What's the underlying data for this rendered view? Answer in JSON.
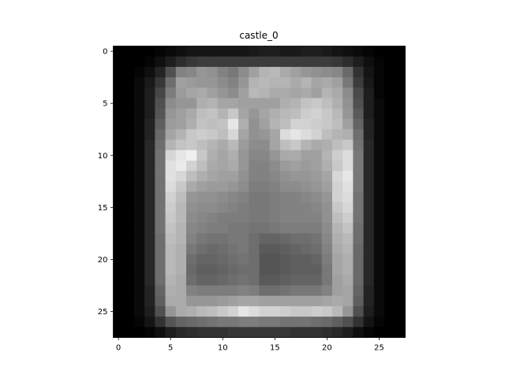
{
  "chart_data": {
    "type": "heatmap",
    "title": "castle_0",
    "xlabel": "",
    "ylabel": "",
    "colormap": "gray",
    "rows": 28,
    "cols": 28,
    "x_ticks": [
      0,
      5,
      10,
      15,
      20,
      25
    ],
    "y_ticks": [
      0,
      5,
      10,
      15,
      20,
      25
    ],
    "xlim": [
      -0.5,
      27.5
    ],
    "ylim": [
      27.5,
      -0.5
    ],
    "value_range": [
      0,
      255
    ],
    "grid": false,
    "legend": "none",
    "values": [
      [
        0,
        0,
        0,
        0,
        5,
        10,
        15,
        20,
        20,
        20,
        20,
        20,
        20,
        25,
        30,
        30,
        25,
        25,
        30,
        30,
        25,
        20,
        15,
        10,
        5,
        0,
        0,
        0
      ],
      [
        0,
        0,
        0,
        5,
        15,
        30,
        45,
        55,
        60,
        60,
        60,
        60,
        60,
        60,
        60,
        60,
        60,
        60,
        60,
        60,
        60,
        55,
        45,
        30,
        15,
        5,
        0,
        0
      ],
      [
        0,
        0,
        5,
        15,
        35,
        80,
        130,
        135,
        150,
        145,
        130,
        120,
        140,
        160,
        180,
        185,
        170,
        160,
        150,
        145,
        140,
        135,
        105,
        50,
        20,
        5,
        0,
        0
      ],
      [
        0,
        0,
        10,
        25,
        55,
        110,
        160,
        155,
        150,
        150,
        140,
        130,
        150,
        180,
        185,
        180,
        180,
        170,
        180,
        165,
        170,
        160,
        120,
        60,
        25,
        5,
        0,
        0
      ],
      [
        0,
        0,
        10,
        30,
        70,
        125,
        155,
        165,
        170,
        160,
        150,
        140,
        160,
        185,
        180,
        170,
        170,
        165,
        170,
        160,
        180,
        170,
        140,
        75,
        30,
        5,
        0,
        0
      ],
      [
        0,
        0,
        10,
        30,
        80,
        140,
        150,
        150,
        175,
        180,
        165,
        165,
        160,
        160,
        160,
        160,
        175,
        180,
        195,
        200,
        190,
        175,
        145,
        80,
        30,
        10,
        0,
        0
      ],
      [
        0,
        0,
        10,
        30,
        85,
        150,
        160,
        170,
        190,
        195,
        180,
        200,
        165,
        150,
        165,
        175,
        185,
        190,
        205,
        210,
        200,
        185,
        150,
        90,
        30,
        10,
        0,
        0
      ],
      [
        0,
        0,
        10,
        35,
        95,
        155,
        160,
        175,
        195,
        190,
        195,
        230,
        175,
        145,
        160,
        180,
        190,
        210,
        210,
        205,
        200,
        190,
        160,
        100,
        35,
        10,
        0,
        0
      ],
      [
        0,
        0,
        10,
        35,
        105,
        165,
        180,
        200,
        205,
        200,
        190,
        215,
        165,
        145,
        150,
        165,
        220,
        230,
        220,
        210,
        190,
        180,
        175,
        110,
        35,
        10,
        0,
        0
      ],
      [
        0,
        0,
        10,
        40,
        110,
        180,
        195,
        200,
        190,
        180,
        170,
        185,
        155,
        140,
        140,
        165,
        190,
        200,
        180,
        170,
        175,
        190,
        200,
        115,
        40,
        10,
        0,
        0
      ],
      [
        0,
        0,
        10,
        40,
        115,
        215,
        230,
        240,
        200,
        175,
        165,
        175,
        150,
        135,
        135,
        150,
        170,
        170,
        160,
        160,
        180,
        205,
        220,
        120,
        40,
        10,
        0,
        0
      ],
      [
        0,
        0,
        10,
        40,
        115,
        225,
        235,
        210,
        190,
        170,
        165,
        170,
        150,
        130,
        130,
        140,
        155,
        160,
        155,
        160,
        175,
        200,
        220,
        120,
        40,
        10,
        0,
        0
      ],
      [
        0,
        0,
        10,
        40,
        115,
        225,
        215,
        190,
        175,
        165,
        160,
        160,
        145,
        130,
        130,
        135,
        145,
        150,
        150,
        155,
        165,
        215,
        230,
        120,
        40,
        10,
        0,
        0
      ],
      [
        0,
        0,
        10,
        40,
        115,
        220,
        200,
        170,
        160,
        155,
        155,
        150,
        140,
        125,
        125,
        130,
        140,
        140,
        145,
        150,
        160,
        210,
        225,
        120,
        40,
        10,
        0,
        0
      ],
      [
        0,
        0,
        10,
        40,
        115,
        210,
        190,
        150,
        145,
        145,
        140,
        135,
        130,
        120,
        120,
        125,
        130,
        130,
        135,
        140,
        150,
        210,
        220,
        115,
        40,
        10,
        0,
        0
      ],
      [
        0,
        0,
        10,
        40,
        115,
        205,
        185,
        145,
        140,
        140,
        135,
        130,
        125,
        120,
        120,
        125,
        130,
        130,
        130,
        135,
        145,
        200,
        215,
        115,
        40,
        10,
        0,
        0
      ],
      [
        0,
        0,
        10,
        40,
        115,
        200,
        185,
        140,
        135,
        130,
        125,
        125,
        125,
        120,
        120,
        125,
        130,
        130,
        130,
        130,
        145,
        190,
        205,
        115,
        40,
        10,
        0,
        0
      ],
      [
        0,
        0,
        10,
        40,
        115,
        195,
        180,
        135,
        130,
        125,
        125,
        120,
        120,
        115,
        115,
        120,
        125,
        125,
        125,
        125,
        140,
        180,
        195,
        110,
        40,
        10,
        0,
        0
      ],
      [
        0,
        0,
        10,
        40,
        110,
        190,
        180,
        130,
        120,
        115,
        115,
        120,
        120,
        110,
        100,
        100,
        105,
        110,
        110,
        115,
        135,
        175,
        185,
        110,
        40,
        10,
        0,
        0
      ],
      [
        0,
        0,
        10,
        40,
        110,
        185,
        175,
        120,
        110,
        105,
        110,
        115,
        120,
        110,
        90,
        90,
        95,
        100,
        105,
        110,
        130,
        170,
        180,
        105,
        40,
        10,
        0,
        0
      ],
      [
        0,
        0,
        10,
        40,
        110,
        185,
        175,
        110,
        100,
        100,
        105,
        110,
        115,
        110,
        85,
        85,
        90,
        95,
        95,
        100,
        125,
        165,
        175,
        105,
        40,
        10,
        0,
        0
      ],
      [
        0,
        0,
        10,
        40,
        110,
        185,
        175,
        105,
        95,
        95,
        100,
        105,
        110,
        110,
        85,
        85,
        90,
        95,
        95,
        95,
        120,
        165,
        175,
        105,
        40,
        10,
        0,
        0
      ],
      [
        0,
        0,
        10,
        40,
        110,
        180,
        170,
        110,
        100,
        100,
        105,
        110,
        115,
        110,
        90,
        90,
        95,
        100,
        100,
        100,
        120,
        160,
        170,
        105,
        40,
        10,
        0,
        0
      ],
      [
        0,
        0,
        10,
        35,
        100,
        175,
        170,
        130,
        125,
        125,
        125,
        125,
        130,
        125,
        110,
        110,
        115,
        120,
        120,
        120,
        130,
        160,
        165,
        100,
        35,
        10,
        0,
        0
      ],
      [
        0,
        0,
        10,
        35,
        95,
        170,
        170,
        150,
        150,
        150,
        155,
        160,
        165,
        165,
        160,
        160,
        160,
        160,
        160,
        160,
        165,
        170,
        165,
        95,
        35,
        10,
        0,
        0
      ],
      [
        0,
        0,
        10,
        30,
        80,
        150,
        170,
        175,
        185,
        190,
        200,
        210,
        230,
        220,
        210,
        210,
        205,
        200,
        200,
        205,
        200,
        185,
        150,
        80,
        30,
        10,
        0,
        0
      ],
      [
        0,
        0,
        5,
        20,
        50,
        85,
        100,
        105,
        110,
        115,
        120,
        120,
        125,
        125,
        120,
        120,
        115,
        115,
        115,
        110,
        105,
        95,
        80,
        50,
        20,
        5,
        0,
        0
      ],
      [
        0,
        0,
        0,
        5,
        15,
        30,
        40,
        45,
        50,
        50,
        50,
        55,
        55,
        55,
        55,
        55,
        55,
        50,
        50,
        50,
        45,
        40,
        30,
        15,
        5,
        0,
        0,
        0
      ]
    ]
  }
}
